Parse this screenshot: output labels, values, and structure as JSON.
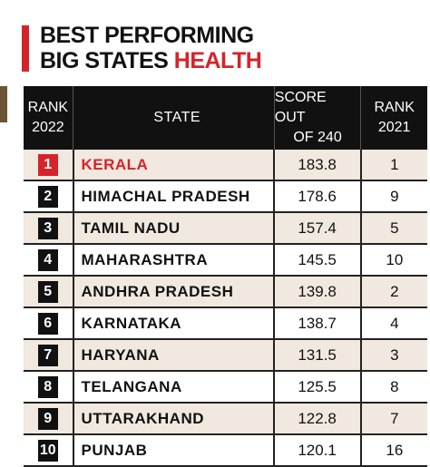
{
  "header": {
    "title_line1": "BEST PERFORMING",
    "title_line2": "BIG STATES",
    "title_highlight": "HEALTH"
  },
  "table": {
    "columns": [
      [
        "RANK",
        "2022"
      ],
      [
        "STATE"
      ],
      [
        "SCORE OUT",
        "OF 240"
      ],
      [
        "RANK",
        "2021"
      ]
    ],
    "rows": [
      [
        1,
        "KERALA",
        183.8,
        1
      ],
      [
        2,
        "HIMACHAL PRADESH",
        178.6,
        9
      ],
      [
        3,
        "TAMIL NADU",
        157.4,
        5
      ],
      [
        4,
        "MAHARASHTRA",
        145.5,
        10
      ],
      [
        5,
        "ANDHRA PRADESH",
        139.8,
        2
      ],
      [
        6,
        "KARNATAKA",
        138.7,
        4
      ],
      [
        7,
        "HARYANA",
        131.5,
        3
      ],
      [
        8,
        "TELANGANA",
        125.5,
        8
      ],
      [
        9,
        "UTTARAKHAND",
        122.8,
        7
      ],
      [
        10,
        "PUNJAB",
        120.1,
        16
      ]
    ]
  }
}
